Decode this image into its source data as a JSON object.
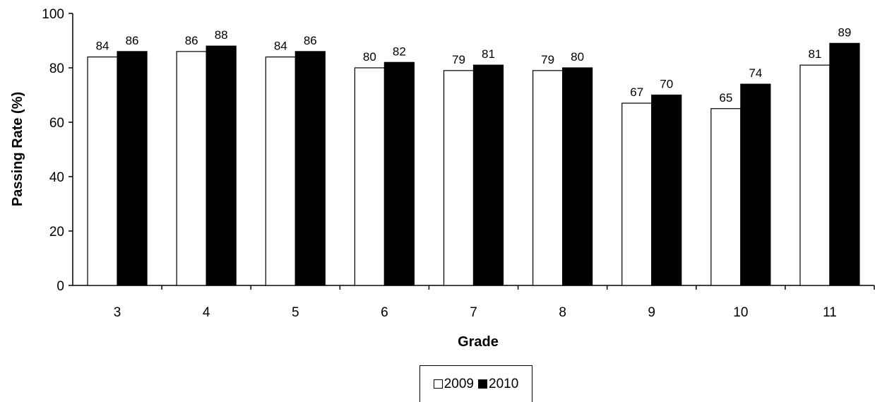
{
  "chart_data": {
    "type": "bar",
    "title": "",
    "xlabel": "Grade",
    "ylabel": "Passing Rate (%)",
    "ylim": [
      0,
      100
    ],
    "yticks": [
      "0",
      "20",
      "40",
      "60",
      "80",
      "100"
    ],
    "categories": [
      "3",
      "4",
      "5",
      "6",
      "7",
      "8",
      "9",
      "10",
      "11"
    ],
    "series": [
      {
        "name": "2009",
        "color": "#ffffff",
        "values": [
          84,
          86,
          84,
          80,
          79,
          79,
          67,
          65,
          81
        ]
      },
      {
        "name": "2010",
        "color": "#000000",
        "values": [
          86,
          88,
          86,
          82,
          81,
          80,
          70,
          74,
          89
        ]
      }
    ],
    "grid": false,
    "legend_position": "bottom-center"
  }
}
